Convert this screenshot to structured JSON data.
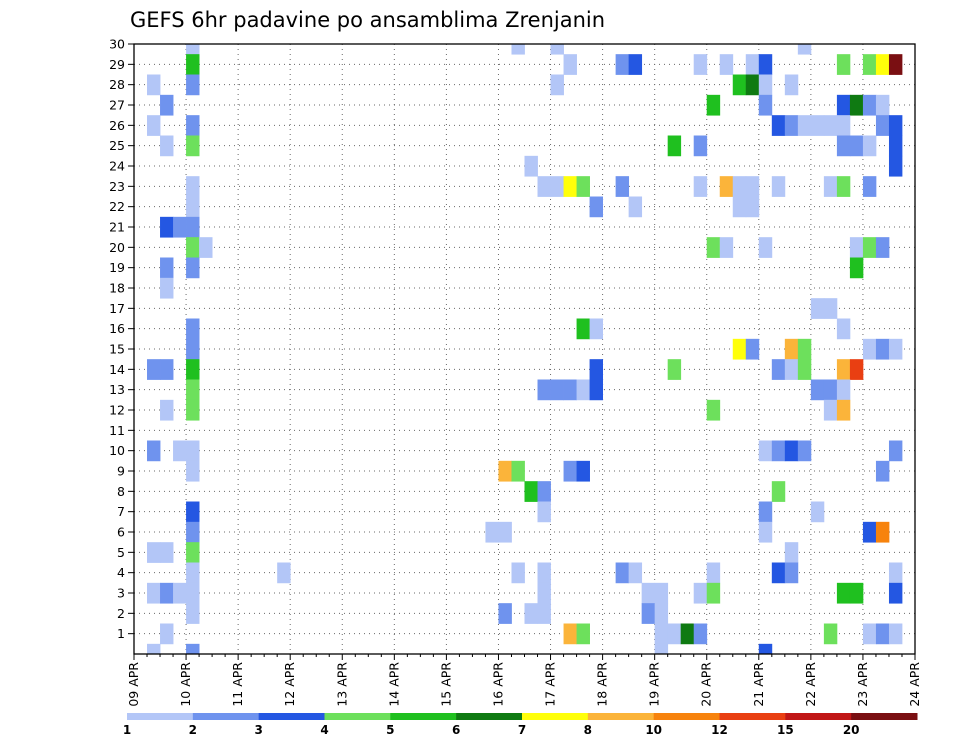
{
  "chart_data": {
    "type": "heatmap",
    "title": "GEFS 6hr padavine po ansamblima Zrenjanin",
    "x_ticks": [
      "09 APR",
      "10 APR",
      "11 APR",
      "12 APR",
      "13 APR",
      "14 APR",
      "15 APR",
      "16 APR",
      "17 APR",
      "18 APR",
      "19 APR",
      "20 APR",
      "21 APR",
      "22 APR",
      "23 APR",
      "24 APR"
    ],
    "x_step": "6hr",
    "y_ticks": [
      1,
      2,
      3,
      4,
      5,
      6,
      7,
      8,
      9,
      10,
      11,
      12,
      13,
      14,
      15,
      16,
      17,
      18,
      19,
      20,
      21,
      22,
      23,
      24,
      25,
      26,
      27,
      28,
      29,
      30
    ],
    "y_range": [
      0,
      30
    ],
    "grid": true,
    "color_bins": [
      {
        "from": 1,
        "to": 2,
        "color": "#b3c6f7"
      },
      {
        "from": 2,
        "to": 3,
        "color": "#6f93ee"
      },
      {
        "from": 3,
        "to": 4,
        "color": "#2457e2"
      },
      {
        "from": 4,
        "to": 5,
        "color": "#6de05c"
      },
      {
        "from": 5,
        "to": 6,
        "color": "#1fc01f"
      },
      {
        "from": 6,
        "to": 7,
        "color": "#0f7a12"
      },
      {
        "from": 7,
        "to": 8,
        "color": "#ffff0a"
      },
      {
        "from": 8,
        "to": 10,
        "color": "#fbb43a"
      },
      {
        "from": 10,
        "to": 12,
        "color": "#f7830d"
      },
      {
        "from": 12,
        "to": 15,
        "color": "#e93f12"
      },
      {
        "from": 15,
        "to": 20,
        "color": "#c11717"
      },
      {
        "from": 20,
        "to": 25,
        "color": "#7a0f12"
      }
    ],
    "legend_labels": [
      "1",
      "2",
      "3",
      "4",
      "5",
      "6",
      "7",
      "8",
      "10",
      "12",
      "15",
      "20"
    ],
    "cells": [
      [
        30,
        4,
        1.5
      ],
      [
        30,
        29,
        1.5
      ],
      [
        30,
        32,
        1.5
      ],
      [
        30,
        51,
        1.5
      ],
      [
        29,
        4,
        5.5
      ],
      [
        29,
        33,
        1.5
      ],
      [
        29,
        37,
        2.5
      ],
      [
        29,
        38,
        3.5
      ],
      [
        29,
        43,
        1.5
      ],
      [
        29,
        45,
        1.5
      ],
      [
        29,
        47,
        1.5
      ],
      [
        29,
        48,
        3.5
      ],
      [
        29,
        54,
        4.5
      ],
      [
        29,
        56,
        4.5
      ],
      [
        29,
        57,
        7.5
      ],
      [
        29,
        58,
        20.5
      ],
      [
        28,
        1,
        1.5
      ],
      [
        28,
        4,
        2.5
      ],
      [
        28,
        32,
        1.5
      ],
      [
        28,
        46,
        5.5
      ],
      [
        28,
        47,
        6.5
      ],
      [
        28,
        48,
        1.5
      ],
      [
        28,
        50,
        1.5
      ],
      [
        27,
        2,
        2.5
      ],
      [
        27,
        44,
        5.5
      ],
      [
        27,
        48,
        2.5
      ],
      [
        27,
        54,
        3.5
      ],
      [
        27,
        55,
        6.5
      ],
      [
        27,
        56,
        2.5
      ],
      [
        27,
        57,
        1.5
      ],
      [
        26,
        1,
        1.5
      ],
      [
        26,
        4,
        2.5
      ],
      [
        26,
        49,
        3.5
      ],
      [
        26,
        50,
        2.5
      ],
      [
        26,
        51,
        1.5
      ],
      [
        26,
        52,
        1.5
      ],
      [
        26,
        53,
        1.5
      ],
      [
        26,
        54,
        1.5
      ],
      [
        26,
        57,
        2.5
      ],
      [
        26,
        58,
        3.5
      ],
      [
        25,
        2,
        1.5
      ],
      [
        25,
        4,
        4.5
      ],
      [
        25,
        41,
        5.5
      ],
      [
        25,
        43,
        2.5
      ],
      [
        25,
        54,
        2.5
      ],
      [
        25,
        55,
        2.5
      ],
      [
        25,
        56,
        1.5
      ],
      [
        25,
        58,
        3.5
      ],
      [
        24,
        30,
        1.5
      ],
      [
        24,
        58,
        3.5
      ],
      [
        23,
        4,
        1.5
      ],
      [
        23,
        31,
        1.5
      ],
      [
        23,
        32,
        1.5
      ],
      [
        23,
        33,
        7.5
      ],
      [
        23,
        34,
        4.5
      ],
      [
        23,
        37,
        2.5
      ],
      [
        23,
        43,
        1.5
      ],
      [
        23,
        45,
        8.5
      ],
      [
        23,
        46,
        1.5
      ],
      [
        23,
        47,
        1.5
      ],
      [
        23,
        49,
        1.5
      ],
      [
        23,
        53,
        1.5
      ],
      [
        23,
        54,
        4.5
      ],
      [
        23,
        56,
        2.5
      ],
      [
        22,
        4,
        1.5
      ],
      [
        22,
        35,
        2.5
      ],
      [
        22,
        38,
        1.5
      ],
      [
        22,
        46,
        1.5
      ],
      [
        22,
        47,
        1.5
      ],
      [
        21,
        2,
        3.5
      ],
      [
        21,
        3,
        2.5
      ],
      [
        21,
        4,
        2.5
      ],
      [
        20,
        4,
        4.5
      ],
      [
        20,
        5,
        1.5
      ],
      [
        20,
        44,
        4.5
      ],
      [
        20,
        45,
        1.5
      ],
      [
        20,
        48,
        1.5
      ],
      [
        20,
        55,
        1.5
      ],
      [
        20,
        56,
        4.5
      ],
      [
        20,
        57,
        2.5
      ],
      [
        19,
        2,
        2.5
      ],
      [
        19,
        4,
        2.5
      ],
      [
        19,
        55,
        5.5
      ],
      [
        18,
        2,
        1.5
      ],
      [
        17,
        52,
        1.5
      ],
      [
        17,
        53,
        1.5
      ],
      [
        16,
        4,
        2.5
      ],
      [
        16,
        34,
        5.5
      ],
      [
        16,
        35,
        1.5
      ],
      [
        16,
        54,
        1.5
      ],
      [
        15,
        4,
        2.5
      ],
      [
        15,
        46,
        7.5
      ],
      [
        15,
        47,
        2.5
      ],
      [
        15,
        50,
        8.5
      ],
      [
        15,
        51,
        4.5
      ],
      [
        15,
        56,
        1.5
      ],
      [
        15,
        57,
        2.5
      ],
      [
        15,
        58,
        1.5
      ],
      [
        14,
        1,
        2.5
      ],
      [
        14,
        2,
        2.5
      ],
      [
        14,
        4,
        5.5
      ],
      [
        14,
        35,
        3.5
      ],
      [
        14,
        41,
        4.5
      ],
      [
        14,
        49,
        2.5
      ],
      [
        14,
        50,
        1.5
      ],
      [
        14,
        51,
        4.5
      ],
      [
        14,
        54,
        8.5
      ],
      [
        14,
        55,
        12.5
      ],
      [
        13,
        4,
        4.5
      ],
      [
        13,
        31,
        2.5
      ],
      [
        13,
        32,
        2.5
      ],
      [
        13,
        33,
        2.5
      ],
      [
        13,
        34,
        1.5
      ],
      [
        13,
        35,
        3.5
      ],
      [
        13,
        52,
        2.5
      ],
      [
        13,
        53,
        2.5
      ],
      [
        13,
        54,
        1.5
      ],
      [
        12,
        2,
        1.5
      ],
      [
        12,
        4,
        4.5
      ],
      [
        12,
        44,
        4.5
      ],
      [
        12,
        53,
        1.5
      ],
      [
        12,
        54,
        8.5
      ],
      [
        10,
        1,
        2.5
      ],
      [
        10,
        3,
        1.5
      ],
      [
        10,
        4,
        1.5
      ],
      [
        10,
        48,
        1.5
      ],
      [
        10,
        49,
        2.5
      ],
      [
        10,
        50,
        3.5
      ],
      [
        10,
        51,
        2.5
      ],
      [
        10,
        58,
        2.5
      ],
      [
        9,
        4,
        1.5
      ],
      [
        9,
        28,
        8.5
      ],
      [
        9,
        29,
        4.5
      ],
      [
        9,
        33,
        2.5
      ],
      [
        9,
        34,
        3.5
      ],
      [
        9,
        57,
        2.5
      ],
      [
        8,
        30,
        5.5
      ],
      [
        8,
        31,
        2.5
      ],
      [
        8,
        49,
        4.5
      ],
      [
        7,
        4,
        3.5
      ],
      [
        7,
        31,
        1.5
      ],
      [
        7,
        48,
        2.5
      ],
      [
        7,
        52,
        1.5
      ],
      [
        6,
        4,
        2.5
      ],
      [
        6,
        27,
        1.5
      ],
      [
        6,
        28,
        1.5
      ],
      [
        6,
        48,
        1.5
      ],
      [
        6,
        56,
        3.5
      ],
      [
        6,
        57,
        10.5
      ],
      [
        5,
        1,
        1.5
      ],
      [
        5,
        2,
        1.5
      ],
      [
        5,
        4,
        4.5
      ],
      [
        5,
        50,
        1.5
      ],
      [
        4,
        4,
        1.5
      ],
      [
        4,
        11,
        1.5
      ],
      [
        4,
        29,
        1.5
      ],
      [
        4,
        31,
        1.5
      ],
      [
        4,
        37,
        2.5
      ],
      [
        4,
        38,
        1.5
      ],
      [
        4,
        44,
        1.5
      ],
      [
        4,
        49,
        3.5
      ],
      [
        4,
        50,
        2.5
      ],
      [
        4,
        58,
        1.5
      ],
      [
        3,
        1,
        1.5
      ],
      [
        3,
        2,
        2.5
      ],
      [
        3,
        3,
        1.5
      ],
      [
        3,
        4,
        1.5
      ],
      [
        3,
        31,
        1.5
      ],
      [
        3,
        39,
        1.5
      ],
      [
        3,
        40,
        1.5
      ],
      [
        3,
        43,
        1.5
      ],
      [
        3,
        44,
        4.5
      ],
      [
        3,
        54,
        5.5
      ],
      [
        3,
        55,
        5.5
      ],
      [
        3,
        58,
        3.5
      ],
      [
        2,
        4,
        1.5
      ],
      [
        2,
        28,
        2.5
      ],
      [
        2,
        30,
        1.5
      ],
      [
        2,
        31,
        1.5
      ],
      [
        2,
        39,
        2.5
      ],
      [
        2,
        40,
        1.5
      ],
      [
        1,
        2,
        1.5
      ],
      [
        1,
        33,
        8.5
      ],
      [
        1,
        34,
        4.5
      ],
      [
        1,
        40,
        1.5
      ],
      [
        1,
        41,
        1.5
      ],
      [
        1,
        42,
        6.5
      ],
      [
        1,
        43,
        2.5
      ],
      [
        1,
        53,
        4.5
      ],
      [
        1,
        56,
        1.5
      ],
      [
        1,
        57,
        2.5
      ],
      [
        1,
        58,
        1.5
      ],
      [
        0,
        1,
        1.5
      ],
      [
        0,
        4,
        2.5
      ],
      [
        0,
        40,
        1.5
      ],
      [
        0,
        48,
        3.5
      ]
    ]
  }
}
